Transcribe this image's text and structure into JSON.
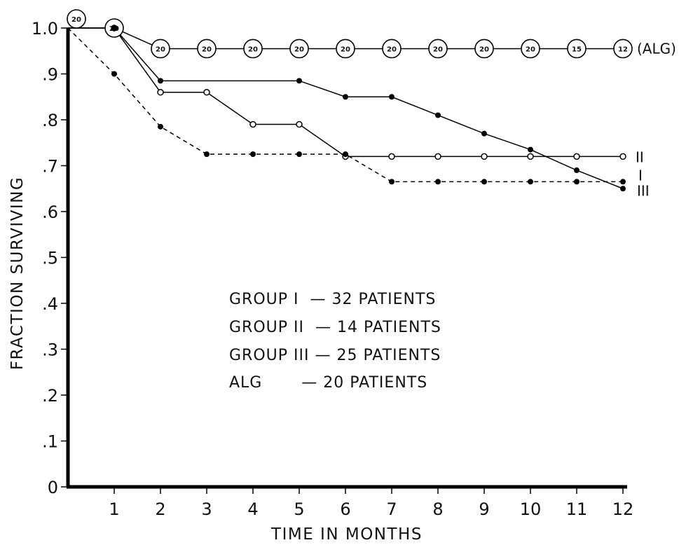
{
  "chart_data": {
    "type": "line",
    "title": "",
    "xlabel": "TIME IN MONTHS",
    "ylabel": "FRACTION SURVIVING",
    "xlim": [
      0,
      12
    ],
    "ylim": [
      0,
      1.0
    ],
    "x_ticks": [
      {
        "value": 1,
        "label": "1"
      },
      {
        "value": 2,
        "label": "2"
      },
      {
        "value": 3,
        "label": "3"
      },
      {
        "value": 4,
        "label": "4"
      },
      {
        "value": 5,
        "label": "5"
      },
      {
        "value": 6,
        "label": "6"
      },
      {
        "value": 7,
        "label": "7"
      },
      {
        "value": 8,
        "label": "8"
      },
      {
        "value": 9,
        "label": "9"
      },
      {
        "value": 10,
        "label": "10"
      },
      {
        "value": 11,
        "label": "11"
      },
      {
        "value": 12,
        "label": "12"
      }
    ],
    "y_ticks": [
      {
        "value": 0,
        "label": "0"
      },
      {
        "value": 0.1,
        "label": ".1"
      },
      {
        "value": 0.2,
        "label": ".2"
      },
      {
        "value": 0.3,
        "label": ".3"
      },
      {
        "value": 0.4,
        "label": ".4"
      },
      {
        "value": 0.5,
        "label": ".5"
      },
      {
        "value": 0.6,
        "label": ".6"
      },
      {
        "value": 0.7,
        "label": ".7"
      },
      {
        "value": 0.8,
        "label": ".8"
      },
      {
        "value": 0.9,
        "label": ".9"
      },
      {
        "value": 1.0,
        "label": "1.0"
      }
    ],
    "grid": false,
    "series": [
      {
        "name": "(ALG)",
        "style": "solid",
        "marker": "numbered-circle",
        "points": [
          {
            "x": 0,
            "y": 1.0,
            "n": "20"
          },
          {
            "x": 1,
            "y": 1.0,
            "n": "20"
          },
          {
            "x": 2,
            "y": 0.955,
            "n": "20"
          },
          {
            "x": 3,
            "y": 0.955,
            "n": "20"
          },
          {
            "x": 4,
            "y": 0.955,
            "n": "20"
          },
          {
            "x": 5,
            "y": 0.955,
            "n": "20"
          },
          {
            "x": 6,
            "y": 0.955,
            "n": "20"
          },
          {
            "x": 7,
            "y": 0.955,
            "n": "20"
          },
          {
            "x": 8,
            "y": 0.955,
            "n": "20"
          },
          {
            "x": 9,
            "y": 0.955,
            "n": "20"
          },
          {
            "x": 10,
            "y": 0.955,
            "n": "20"
          },
          {
            "x": 11,
            "y": 0.955,
            "n": "15"
          },
          {
            "x": 12,
            "y": 0.955,
            "n": "12"
          }
        ]
      },
      {
        "name": "II",
        "style": "solid",
        "marker": "open-circle",
        "points": [
          {
            "x": 0,
            "y": 1.0
          },
          {
            "x": 1,
            "y": 1.0
          },
          {
            "x": 2,
            "y": 0.86
          },
          {
            "x": 3,
            "y": 0.86
          },
          {
            "x": 4,
            "y": 0.79
          },
          {
            "x": 5,
            "y": 0.79
          },
          {
            "x": 6,
            "y": 0.72
          },
          {
            "x": 7,
            "y": 0.72
          },
          {
            "x": 8,
            "y": 0.72
          },
          {
            "x": 9,
            "y": 0.72
          },
          {
            "x": 10,
            "y": 0.72
          },
          {
            "x": 11,
            "y": 0.72
          },
          {
            "x": 12,
            "y": 0.72
          }
        ]
      },
      {
        "name": "I",
        "style": "dashed",
        "marker": "filled-circle",
        "points": [
          {
            "x": 0,
            "y": 1.0
          },
          {
            "x": 1,
            "y": 0.9
          },
          {
            "x": 2,
            "y": 0.785
          },
          {
            "x": 3,
            "y": 0.725
          },
          {
            "x": 4,
            "y": 0.725
          },
          {
            "x": 5,
            "y": 0.725
          },
          {
            "x": 6,
            "y": 0.725
          },
          {
            "x": 7,
            "y": 0.665
          },
          {
            "x": 8,
            "y": 0.665
          },
          {
            "x": 9,
            "y": 0.665
          },
          {
            "x": 10,
            "y": 0.665
          },
          {
            "x": 11,
            "y": 0.665
          },
          {
            "x": 12,
            "y": 0.665
          }
        ]
      },
      {
        "name": "III",
        "style": "solid",
        "marker": "filled-circle",
        "points": [
          {
            "x": 0,
            "y": 1.0
          },
          {
            "x": 1,
            "y": 1.0
          },
          {
            "x": 2,
            "y": 0.885
          },
          {
            "x": 5,
            "y": 0.885
          },
          {
            "x": 6,
            "y": 0.85
          },
          {
            "x": 7,
            "y": 0.85
          },
          {
            "x": 8,
            "y": 0.81
          },
          {
            "x": 9,
            "y": 0.77
          },
          {
            "x": 10,
            "y": 0.735
          },
          {
            "x": 11,
            "y": 0.69
          },
          {
            "x": 12,
            "y": 0.65
          }
        ]
      }
    ],
    "legend": {
      "placement": "center",
      "entries": [
        "GROUP I  — 32 PATIENTS",
        "GROUP II  — 14 PATIENTS",
        "GROUP III — 25 PATIENTS",
        "ALG       — 20 PATIENTS"
      ]
    }
  }
}
